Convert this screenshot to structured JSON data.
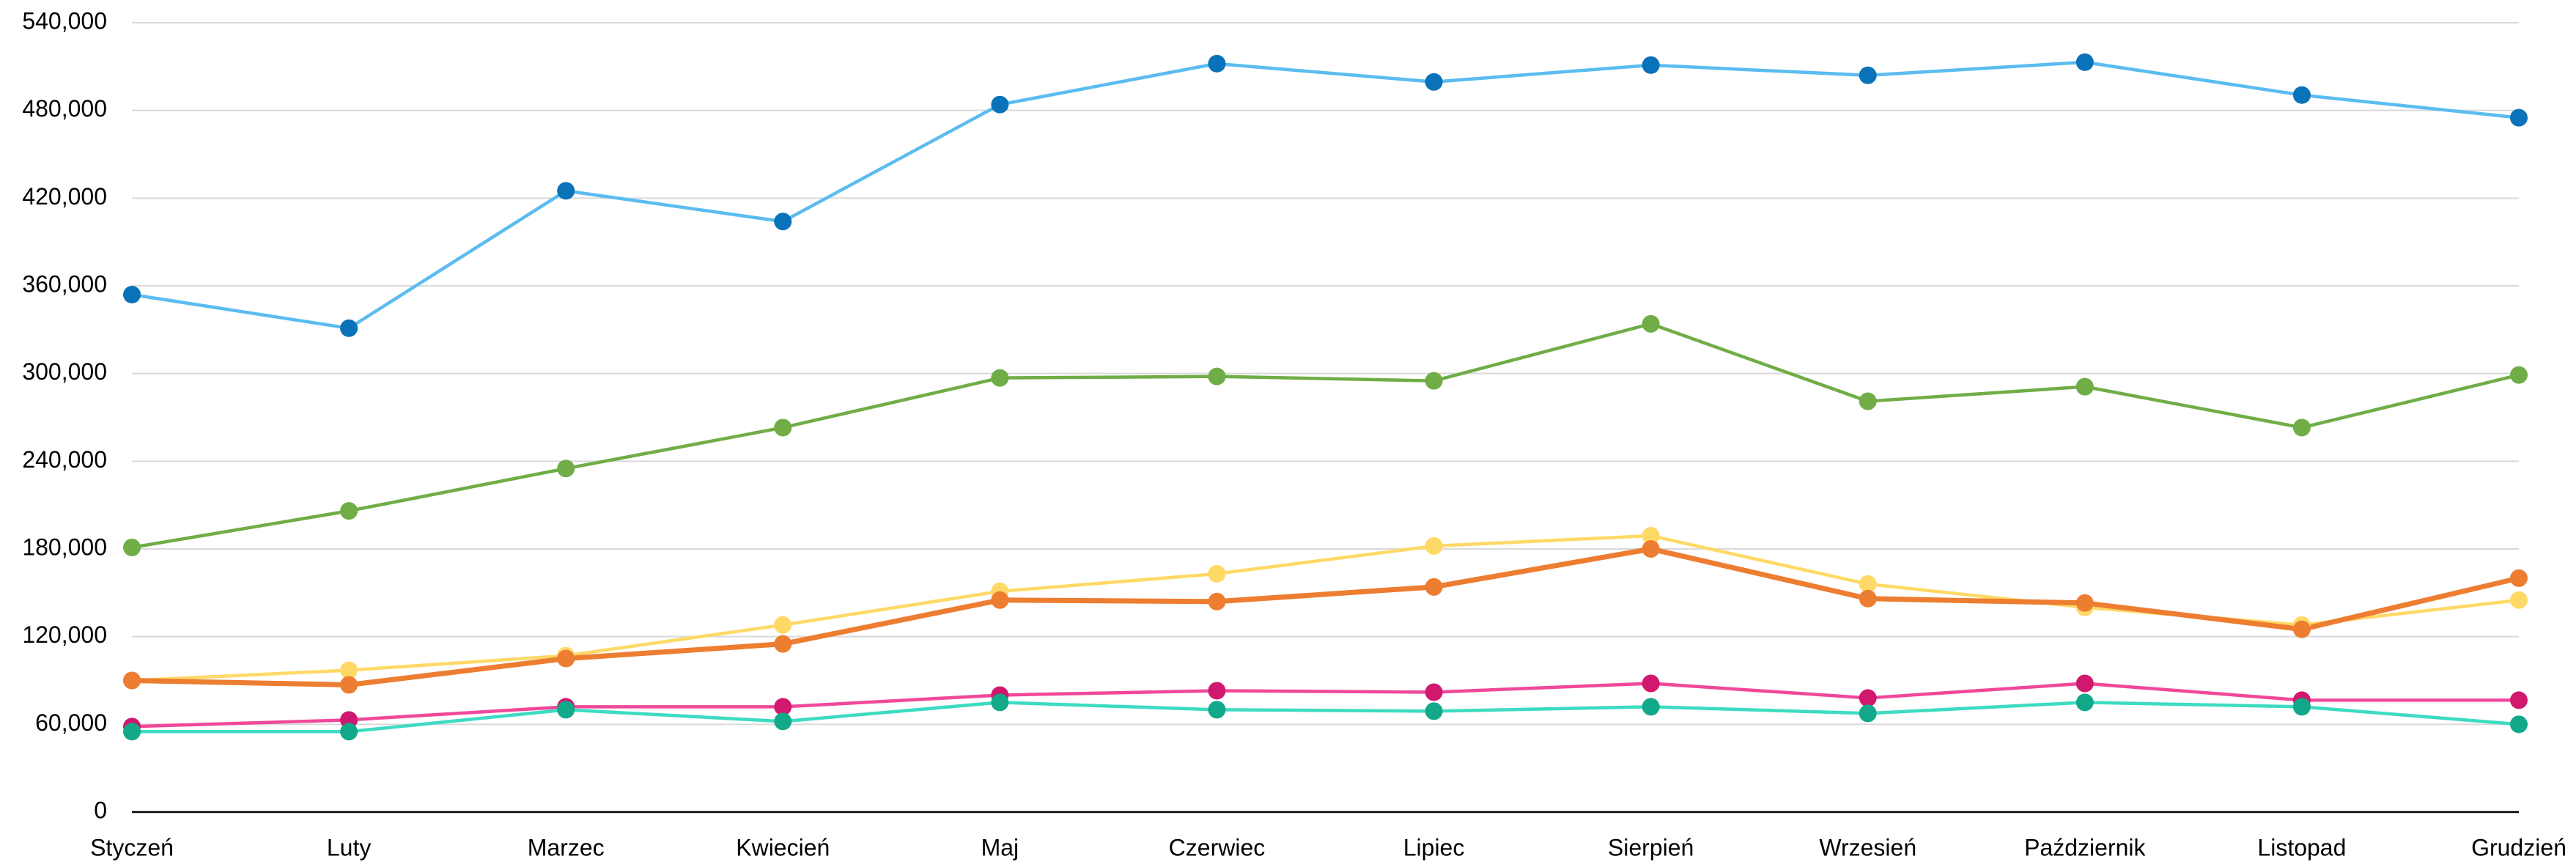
{
  "chart_data": {
    "type": "line",
    "categories": [
      "Styczeń",
      "Luty",
      "Marzec",
      "Kwiecień",
      "Maj",
      "Czerwiec",
      "Lipiec",
      "Sierpień",
      "Wrzesień",
      "Październik",
      "Listopad",
      "Grudzień"
    ],
    "series": [
      {
        "color": "#5bbcf0",
        "marker_color": "#0a72b8",
        "line_width": 4.5,
        "values": [
          354000,
          331000,
          425000,
          404000,
          484000,
          512000,
          499500,
          511000,
          504000,
          513000,
          490500,
          475000
        ]
      },
      {
        "color": "#70ad47",
        "marker_color": "#70ad47",
        "line_width": 4.5,
        "values": [
          181000,
          206000,
          235000,
          263000,
          297000,
          298000,
          295000,
          334000,
          281000,
          291000,
          263000,
          299000
        ]
      },
      {
        "color": "#ffd966",
        "marker_color": "#ffd966",
        "line_width": 4.5,
        "values": [
          90000,
          97000,
          107000,
          128000,
          151000,
          163000,
          182000,
          189000,
          156000,
          140000,
          128000,
          145000
        ]
      },
      {
        "color": "#ed7d31",
        "marker_color": "#ed7d31",
        "line_width": 7,
        "values": [
          90000,
          87000,
          105000,
          115000,
          145000,
          144000,
          154000,
          180000,
          146000,
          143000,
          125000,
          160000
        ]
      },
      {
        "color": "#f0489a",
        "marker_color": "#d0186e",
        "line_width": 4.5,
        "values": [
          58500,
          63000,
          72000,
          72000,
          80000,
          83000,
          82000,
          88000,
          78000,
          88000,
          76500,
          76500
        ]
      },
      {
        "color": "#3ddbc2",
        "marker_color": "#12a88a",
        "line_width": 4.5,
        "values": [
          55000,
          55000,
          70000,
          62000,
          75000,
          70000,
          69000,
          72000,
          67500,
          75000,
          72000,
          60000
        ]
      }
    ],
    "ylim": [
      0,
      540000
    ],
    "yticks": [
      0,
      {
        "value": 60000,
        "label": "60,000"
      },
      {
        "value": 120000,
        "label": "120,000"
      },
      {
        "value": 180000,
        "label": "180,000"
      },
      {
        "value": 240000,
        "label": "240,000"
      },
      {
        "value": 300000,
        "label": "300,000"
      },
      {
        "value": 360000,
        "label": "360,000"
      },
      {
        "value": 420000,
        "label": "420,000"
      },
      {
        "value": 480000,
        "label": "480,000"
      },
      {
        "value": 540000,
        "label": "540,000"
      }
    ],
    "grid": true
  }
}
